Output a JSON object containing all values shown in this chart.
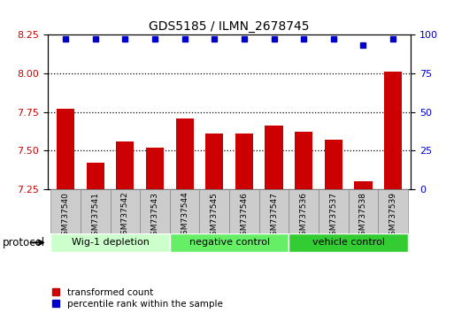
{
  "title": "GDS5185 / ILMN_2678745",
  "samples": [
    "GSM737540",
    "GSM737541",
    "GSM737542",
    "GSM737543",
    "GSM737544",
    "GSM737545",
    "GSM737546",
    "GSM737547",
    "GSM737536",
    "GSM737537",
    "GSM737538",
    "GSM737539"
  ],
  "bar_values": [
    7.77,
    7.42,
    7.56,
    7.52,
    7.71,
    7.61,
    7.61,
    7.66,
    7.62,
    7.57,
    7.3,
    8.01
  ],
  "percentile_values": [
    97,
    97,
    97,
    97,
    97,
    97,
    97,
    97,
    97,
    97,
    93,
    97
  ],
  "ylim_left": [
    7.25,
    8.25
  ],
  "ylim_right": [
    0,
    100
  ],
  "yticks_left": [
    7.25,
    7.5,
    7.75,
    8.0,
    8.25
  ],
  "yticks_right": [
    0,
    25,
    50,
    75,
    100
  ],
  "bar_color": "#cc0000",
  "dot_color": "#0000cc",
  "bar_width": 0.6,
  "groups": [
    {
      "label": "Wig-1 depletion",
      "indices": [
        0,
        1,
        2,
        3
      ],
      "color": "#ccffcc"
    },
    {
      "label": "negative control",
      "indices": [
        4,
        5,
        6,
        7
      ],
      "color": "#66ee66"
    },
    {
      "label": "vehicle control",
      "indices": [
        8,
        9,
        10,
        11
      ],
      "color": "#33cc33"
    }
  ],
  "xlabel_group": "protocol",
  "legend_items": [
    {
      "color": "#cc0000",
      "label": "transformed count"
    },
    {
      "color": "#0000cc",
      "label": "percentile rank within the sample"
    }
  ],
  "hlines": [
    7.5,
    7.75,
    8.0
  ],
  "background_plot": "#ffffff",
  "tick_label_color_left": "#cc0000",
  "tick_label_color_right": "#0000cc",
  "sample_box_color": "#cccccc",
  "sample_box_edge": "#888888"
}
